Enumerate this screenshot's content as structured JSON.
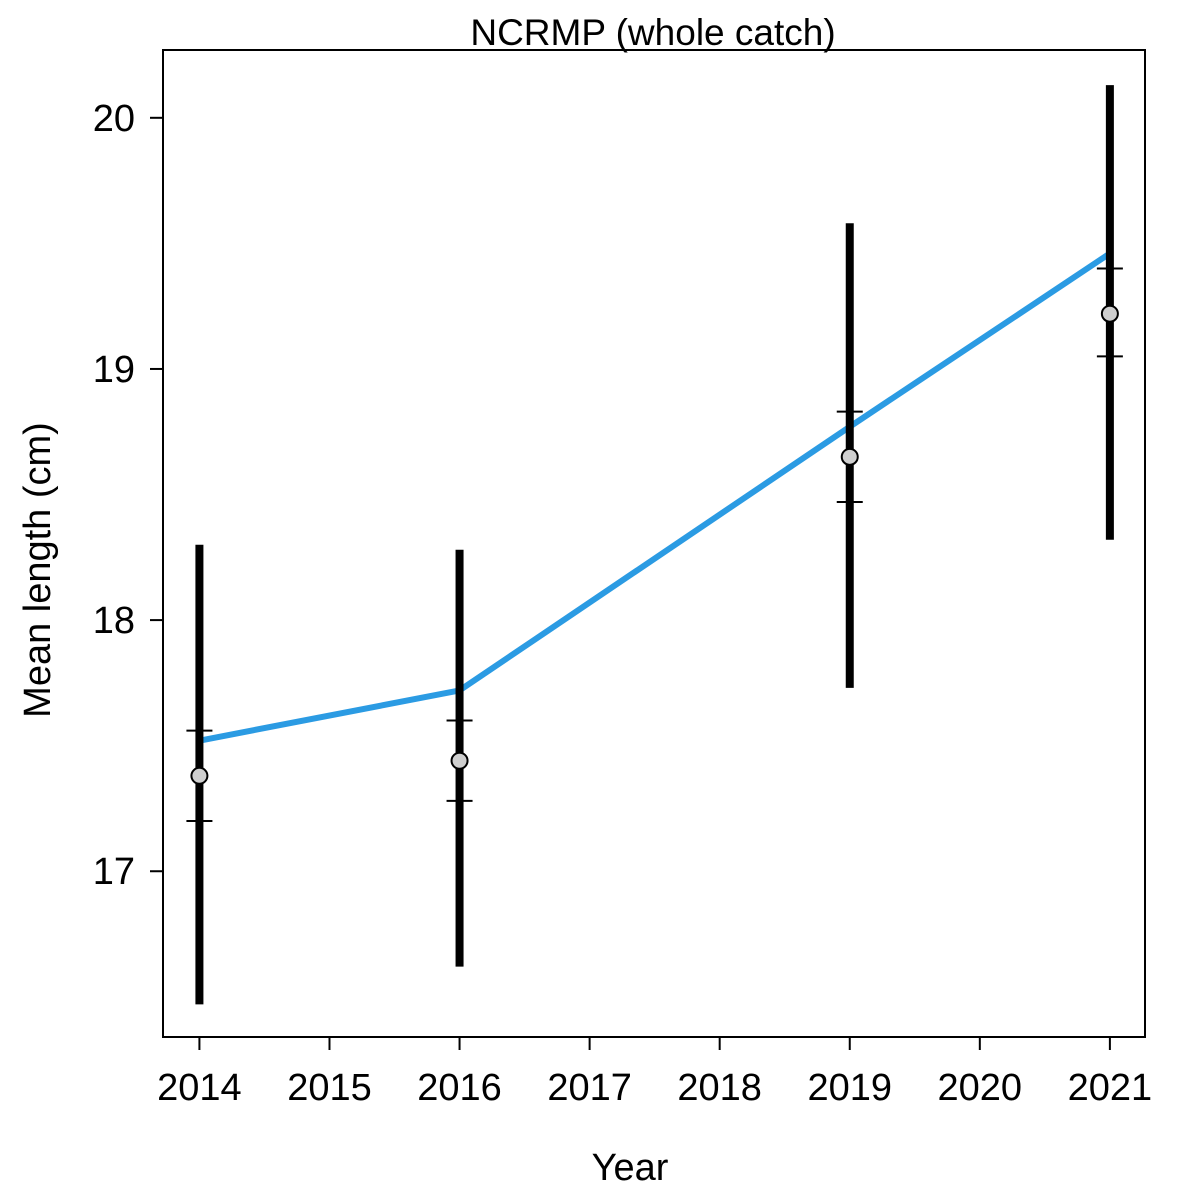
{
  "chart_data": {
    "type": "scatter",
    "title": "NCRMP (whole catch)",
    "xlabel": "Year",
    "ylabel": "Mean length (cm)",
    "xlim": [
      2013.72,
      2021.27
    ],
    "ylim": [
      16.34,
      20.27
    ],
    "x_ticks": [
      2014,
      2015,
      2016,
      2017,
      2018,
      2019,
      2020,
      2021
    ],
    "y_ticks": [
      17,
      18,
      19,
      20
    ],
    "grid": false,
    "legend": "none",
    "colors": {
      "observed_fill": "#cfcfcf",
      "interval": "#000000",
      "fit": "#2b9be3"
    },
    "series": [
      {
        "kind": "observed",
        "x": [
          2014,
          2016,
          2019,
          2021
        ],
        "y": [
          17.38,
          17.44,
          18.65,
          19.22
        ],
        "outer_low": [
          16.47,
          16.62,
          17.73,
          18.32
        ],
        "outer_high": [
          18.3,
          18.28,
          19.58,
          20.13
        ],
        "inner_low": [
          17.2,
          17.28,
          18.47,
          19.05
        ],
        "inner_high": [
          17.56,
          17.6,
          18.83,
          19.4
        ]
      },
      {
        "kind": "expected",
        "x": [
          2014,
          2016,
          2019,
          2021
        ],
        "y": [
          17.52,
          17.72,
          18.77,
          19.46
        ]
      }
    ]
  }
}
